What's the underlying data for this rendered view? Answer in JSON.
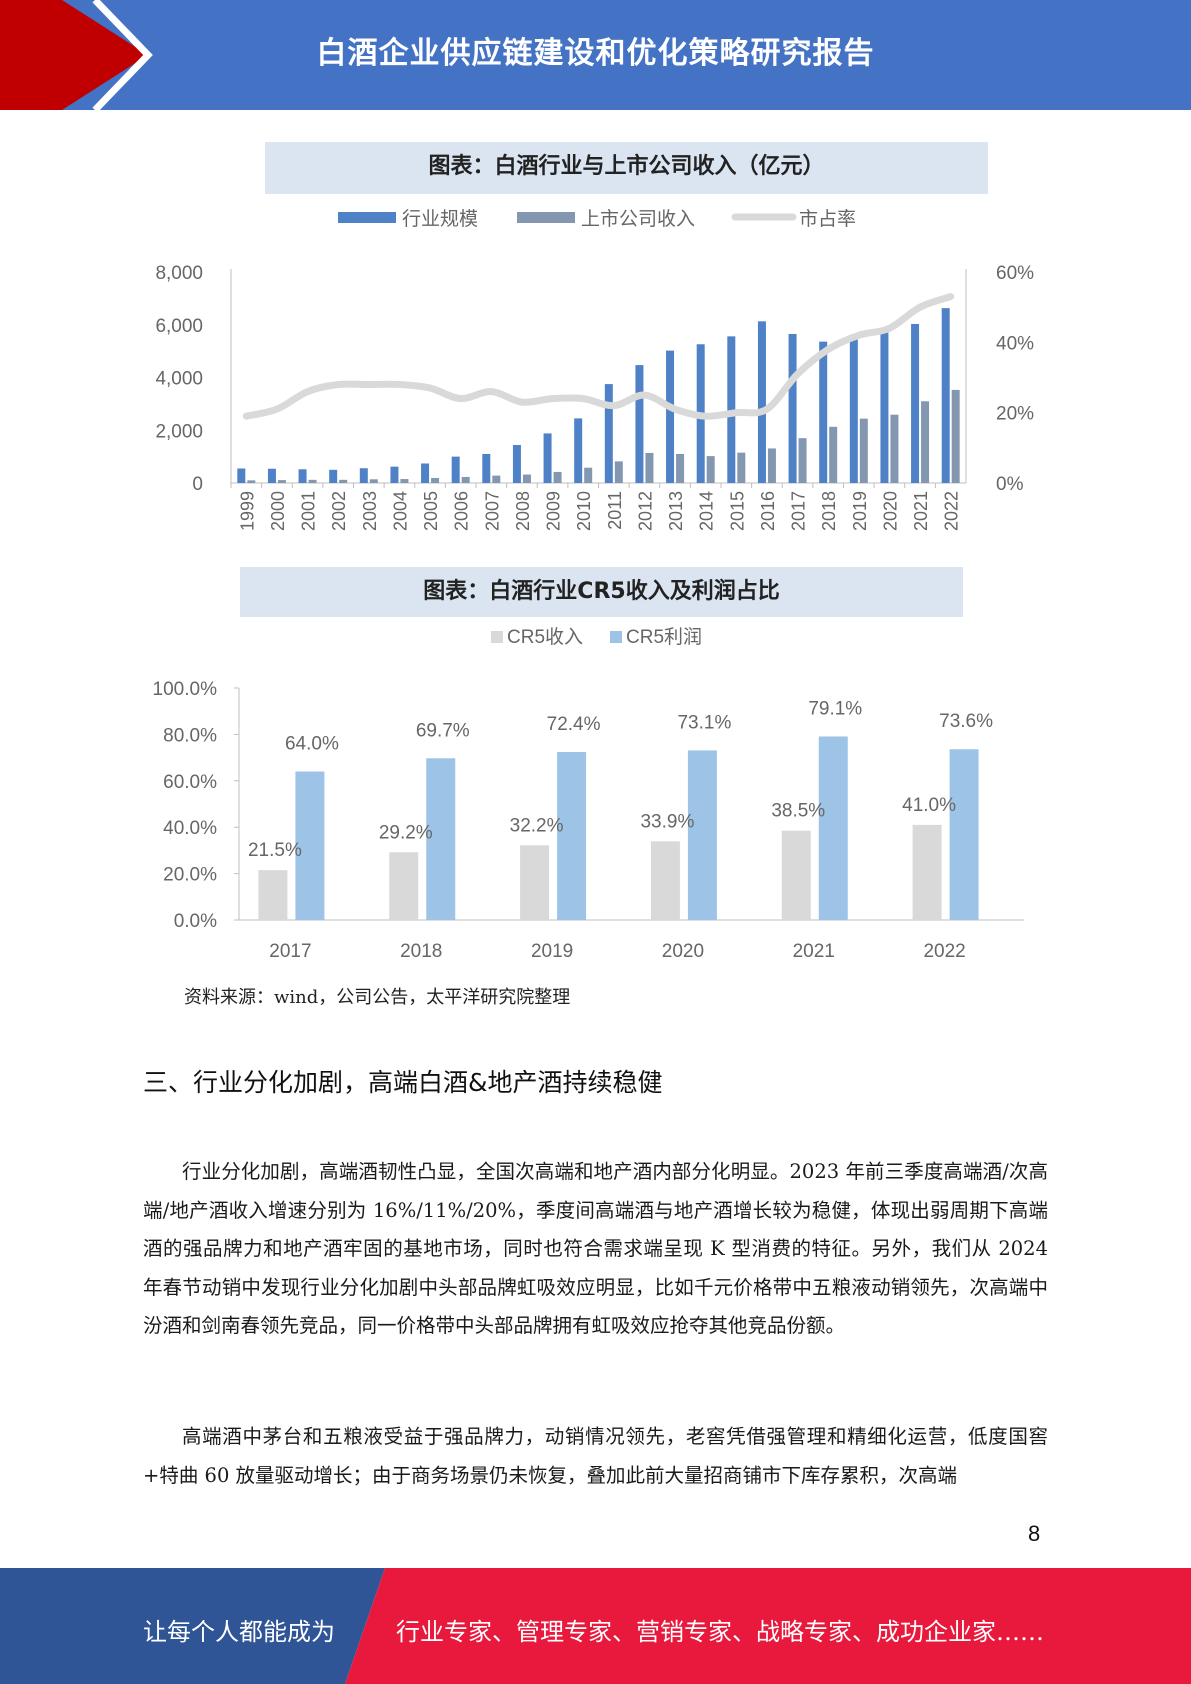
{
  "header": {
    "title": "白酒企业供应链建设和优化策略研究报告",
    "colors": {
      "blue": "#4472c4",
      "red": "#c00000"
    }
  },
  "chart_data": [
    {
      "type": "bar",
      "title": "图表：白酒行业与上市公司收入（亿元）",
      "categories": [
        "1999",
        "2000",
        "2001",
        "2002",
        "2003",
        "2004",
        "2005",
        "2006",
        "2007",
        "2008",
        "2009",
        "2010",
        "2011",
        "2012",
        "2013",
        "2014",
        "2015",
        "2016",
        "2017",
        "2018",
        "2019",
        "2020",
        "2021",
        "2022"
      ],
      "series": [
        {
          "name": "行业规模",
          "kind": "bar",
          "axis": "left",
          "color": "#4f81c7",
          "values": [
            550,
            540,
            520,
            500,
            560,
            620,
            740,
            1000,
            1100,
            1440,
            1880,
            2450,
            3750,
            4470,
            5020,
            5260,
            5560,
            6130,
            5650,
            5360,
            5620,
            5840,
            6030,
            6630
          ]
        },
        {
          "name": "上市公司收入",
          "kind": "bar",
          "axis": "left",
          "color": "#8497b0",
          "values": [
            100,
            110,
            120,
            120,
            140,
            150,
            190,
            230,
            280,
            320,
            420,
            580,
            820,
            1140,
            1100,
            1020,
            1150,
            1310,
            1700,
            2130,
            2440,
            2590,
            3100,
            3530
          ]
        },
        {
          "name": "市占率",
          "kind": "line",
          "axis": "right",
          "color": "#d9d9d9",
          "values": [
            19,
            21,
            26,
            28,
            28,
            28,
            27,
            24,
            26,
            23,
            24,
            24,
            22,
            25,
            21,
            19,
            20,
            21,
            31,
            38,
            42,
            44,
            50,
            53
          ]
        }
      ],
      "ylim": [
        0,
        8000
      ],
      "yticks": [
        "8,000",
        "6,000",
        "4,000",
        "2,000",
        "0"
      ],
      "y2lim": [
        0,
        60
      ],
      "y2ticks": [
        "60%",
        "40%",
        "20%",
        "0%"
      ],
      "legend_position": "top"
    },
    {
      "type": "bar",
      "title": "图表：白酒行业CR5收入及利润占比",
      "categories": [
        "2017",
        "2018",
        "2019",
        "2020",
        "2021",
        "2022"
      ],
      "series": [
        {
          "name": "CR5收入",
          "color": "#d9d9d9",
          "values": [
            21.5,
            29.2,
            32.2,
            33.9,
            38.5,
            41.0
          ],
          "labels": [
            "21.5%",
            "29.2%",
            "32.2%",
            "33.9%",
            "38.5%",
            "41.0%"
          ]
        },
        {
          "name": "CR5利润",
          "color": "#9dc3e6",
          "values": [
            64.0,
            69.7,
            72.4,
            73.1,
            79.1,
            73.6
          ],
          "labels": [
            "64.0%",
            "69.7%",
            "72.4%",
            "73.1%",
            "79.1%",
            "73.6%"
          ]
        }
      ],
      "ylim": [
        0,
        100
      ],
      "yticks": [
        "100.0%",
        "80.0%",
        "60.0%",
        "40.0%",
        "20.0%",
        "0.0%"
      ],
      "legend_position": "top"
    }
  ],
  "source": "资料来源：wind，公司公告，太平洋研究院整理",
  "section_heading": "三、行业分化加剧，高端白酒&地产酒持续稳健",
  "paragraphs": [
    "行业分化加剧，高端酒韧性凸显，全国次高端和地产酒内部分化明显。2023 年前三季度高端酒/次高端/地产酒收入增速分别为 16%/11%/20%，季度间高端酒与地产酒增长较为稳健，体现出弱周期下高端酒的强品牌力和地产酒牢固的基地市场，同时也符合需求端呈现 K 型消费的特征。另外，我们从 2024 年春节动销中发现行业分化加剧中头部品牌虹吸效应明显，比如千元价格带中五粮液动销领先，次高端中汾酒和剑南春领先竞品，同一价格带中头部品牌拥有虹吸效应抢夺其他竞品份额。",
    "高端酒中茅台和五粮液受益于强品牌力，动销情况领先，老窖凭借强管理和精细化运营，低度国窖+特曲 60 放量驱动增长；由于商务场景仍未恢复，叠加此前大量招商铺市下库存累积，次高端"
  ],
  "page_number": "8",
  "footer": {
    "left_text": "让每个人都能成为",
    "right_text": "行业专家、管理专家、营销专家、战略专家、成功企业家……",
    "colors": {
      "blue": "#2f5597",
      "red": "#e8193c"
    }
  }
}
